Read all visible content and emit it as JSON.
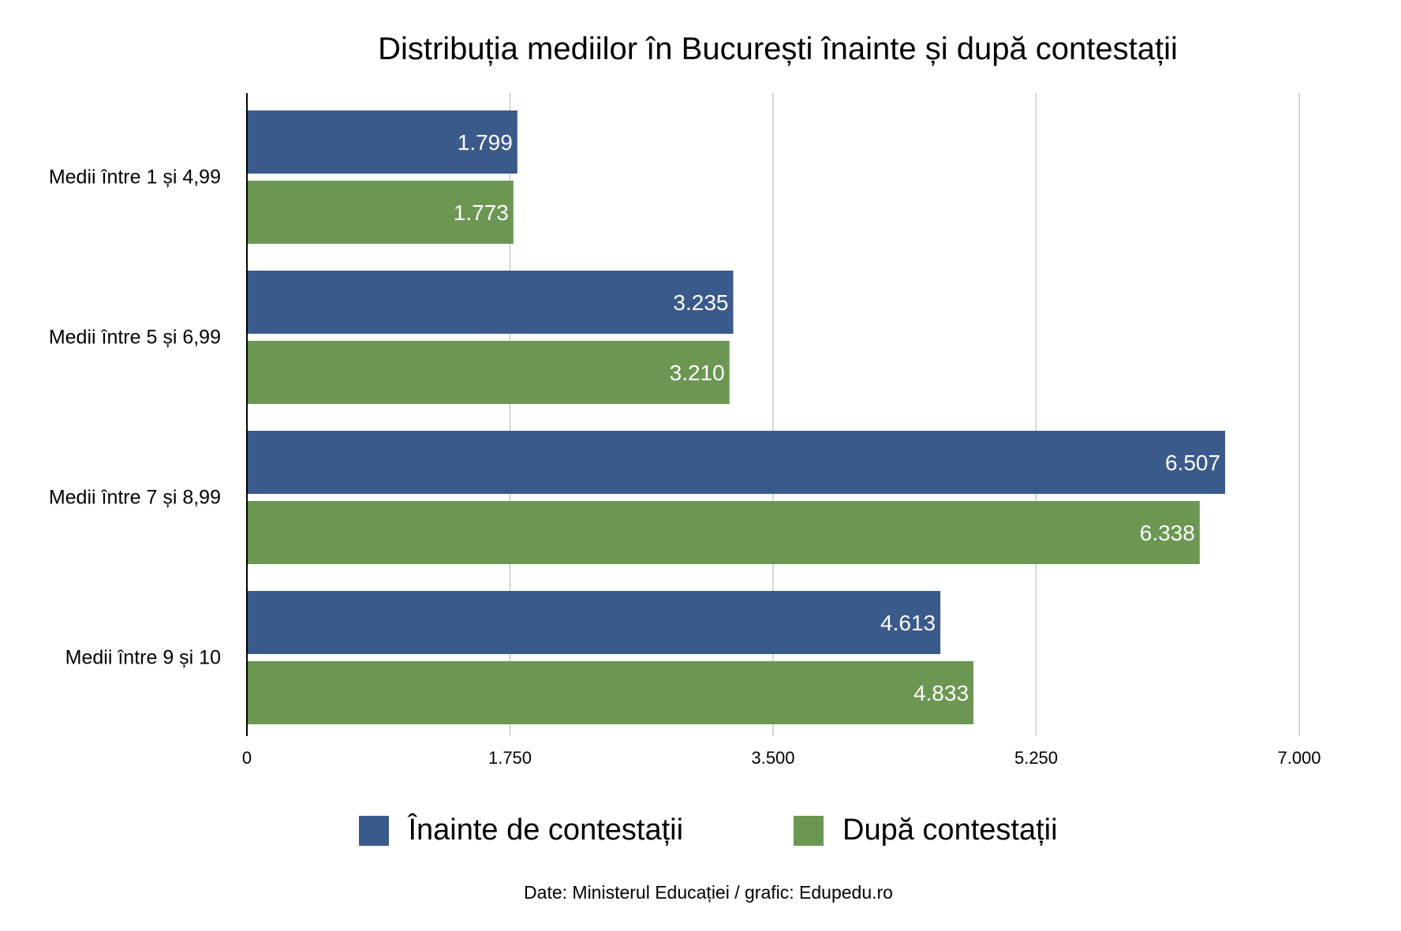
{
  "chart_data": {
    "type": "bar",
    "orientation": "horizontal",
    "title": "Distribuția mediilor în București înainte și după contestații",
    "categories": [
      "Medii între 1 și 4,99",
      "Medii între 5 și 6,99",
      "Medii între 7 și 8,99",
      "Medii între 9 și 10"
    ],
    "series": [
      {
        "name": "Înainte de contestații",
        "color": "#3b5a8c",
        "values": [
          1799,
          3235,
          6507,
          4613
        ],
        "labels": [
          "1.799",
          "3.235",
          "6.507",
          "4.613"
        ]
      },
      {
        "name": "După contestații",
        "color": "#6b9753",
        "values": [
          1773,
          3210,
          6338,
          4833
        ],
        "labels": [
          "1.773",
          "3.210",
          "6.338",
          "4.833"
        ]
      }
    ],
    "xlim": [
      0,
      7000
    ],
    "ticks": [
      0,
      1750,
      3500,
      5250,
      7000
    ],
    "tick_labels": [
      "0",
      "1.750",
      "3.500",
      "5.250",
      "7.000"
    ],
    "grid": true,
    "legend_position": "bottom",
    "source": "Date: Ministerul Educației / grafic: Edupedu.ro"
  }
}
